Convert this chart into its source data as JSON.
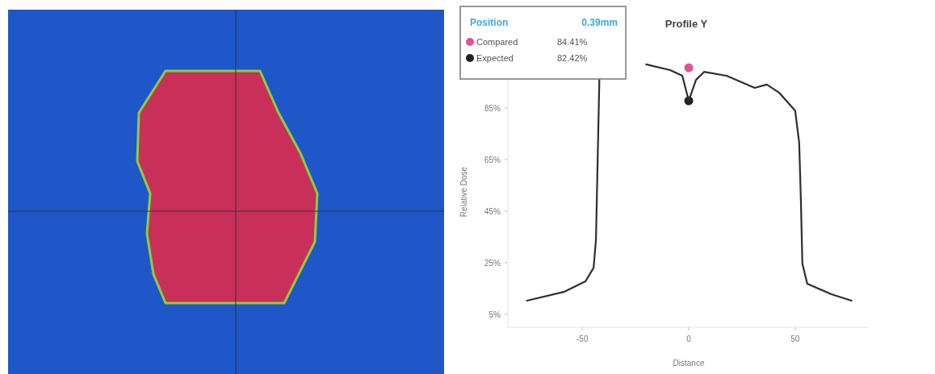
{
  "chart_data": {
    "type": "line",
    "title": "Profile Y",
    "xlabel": "Distance",
    "ylabel": "Relative Dose",
    "xlim": [
      -85,
      85
    ],
    "xticks": [
      -50,
      0,
      50
    ],
    "ylim": [
      0,
      105
    ],
    "yticks": [
      {
        "value": 5,
        "label": "5%"
      },
      {
        "value": 25,
        "label": "25%"
      },
      {
        "value": 45,
        "label": "45%"
      },
      {
        "value": 65,
        "label": "65%"
      },
      {
        "value": 85,
        "label": "85%"
      }
    ],
    "grid": false,
    "legend": "top left",
    "annotations": [
      "Position",
      "0.39mm",
      "84.41%",
      "82.42%"
    ],
    "series": [
      {
        "color": "#2b2f36",
        "line_style": "solid",
        "marker": "none",
        "x": [
          -76,
          -58.7,
          -48.5,
          -44.7,
          -43.6,
          -42.8,
          -42,
          -40.9,
          -31.4,
          -20,
          -8.7,
          -3,
          0,
          3.4,
          7.2,
          17.8,
          31,
          36.7,
          42.4,
          50,
          51.9,
          52.7,
          53.4,
          55.7,
          67,
          76.5
        ],
        "values": [
          10.3,
          13.7,
          17.8,
          23.1,
          34,
          65,
          96,
          null,
          null,
          101.9,
          99.7,
          97.5,
          87.8,
          95.9,
          99,
          97.5,
          92.8,
          94.1,
          91,
          84,
          71.6,
          49.7,
          24.7,
          16.9,
          12.8,
          10.3
        ]
      },
      {
        "type": "scatter",
        "name": "Compared",
        "color": "#e0529a",
        "marker": "circle",
        "x": [
          0
        ],
        "values": [
          100.6
        ]
      },
      {
        "type": "scatter",
        "name": "Expected",
        "color": "#222222",
        "marker": "circle",
        "x": [
          0
        ],
        "values": [
          87.8
        ]
      }
    ]
  }
}
